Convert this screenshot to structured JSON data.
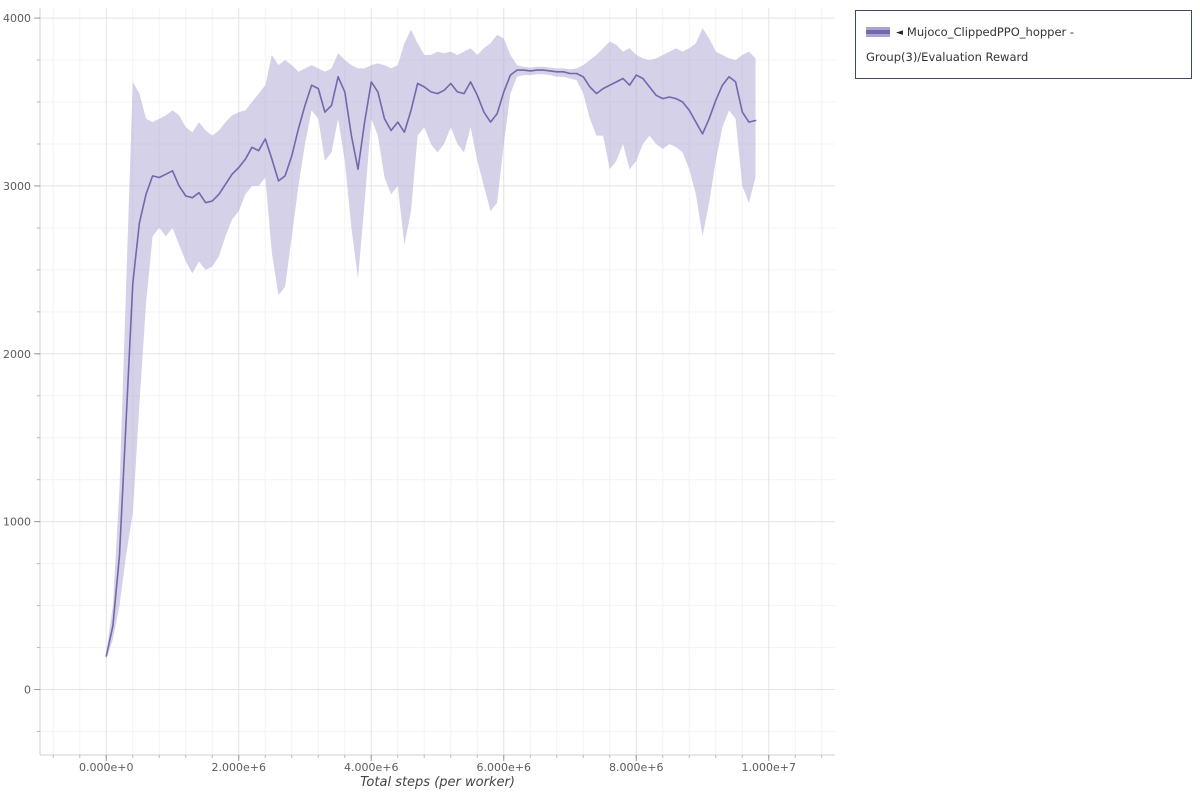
{
  "legend": {
    "marker": "◄",
    "label": "Mujoco_ClippedPPO_hopper - Group(3)/Evaluation Reward",
    "border_color": "#3b4a66"
  },
  "chart_data": {
    "type": "line",
    "title": "",
    "xlabel": "Total steps (per worker)",
    "ylabel": "",
    "xlim": [
      -1000000,
      11000000
    ],
    "ylim": [
      -390,
      4060
    ],
    "x_ticks": [
      {
        "value": 0,
        "label": "0.000e+0"
      },
      {
        "value": 2000000,
        "label": "2.000e+6"
      },
      {
        "value": 4000000,
        "label": "4.000e+6"
      },
      {
        "value": 6000000,
        "label": "6.000e+6"
      },
      {
        "value": 8000000,
        "label": "8.000e+6"
      },
      {
        "value": 10000000,
        "label": "1.000e+7"
      }
    ],
    "y_ticks": [
      {
        "value": 0,
        "label": "0"
      },
      {
        "value": 1000,
        "label": "1000"
      },
      {
        "value": 2000,
        "label": "2000"
      },
      {
        "value": 3000,
        "label": "3000"
      },
      {
        "value": 4000,
        "label": "4000"
      }
    ],
    "grid": {
      "x_minor_step": 400000,
      "x_major_step": 2000000,
      "y_minor_step": 250,
      "y_major_step": 1000,
      "minor_color": "#f3f3f3",
      "major_color": "#e4e4e4"
    },
    "series": [
      {
        "name": "Mujoco_ClippedPPO_hopper - Group(3)/Evaluation Reward",
        "line_color": "#7268ab",
        "band_color": "#aaa3d1",
        "band_opacity": 0.5,
        "x_start": 0,
        "x_step": 100000,
        "mean": [
          200,
          380,
          800,
          1600,
          2420,
          2780,
          2950,
          3060,
          3050,
          3070,
          3090,
          3000,
          2940,
          2930,
          2960,
          2900,
          2910,
          2950,
          3010,
          3070,
          3110,
          3160,
          3230,
          3210,
          3280,
          3160,
          3030,
          3060,
          3180,
          3340,
          3480,
          3600,
          3580,
          3440,
          3480,
          3650,
          3560,
          3300,
          3100,
          3380,
          3620,
          3560,
          3400,
          3330,
          3380,
          3320,
          3450,
          3610,
          3590,
          3560,
          3550,
          3570,
          3610,
          3560,
          3550,
          3620,
          3540,
          3440,
          3380,
          3430,
          3560,
          3660,
          3690,
          3690,
          3685,
          3690,
          3690,
          3685,
          3680,
          3680,
          3670,
          3670,
          3650,
          3590,
          3550,
          3580,
          3600,
          3620,
          3640,
          3600,
          3660,
          3640,
          3590,
          3540,
          3520,
          3530,
          3520,
          3500,
          3450,
          3380,
          3310,
          3400,
          3510,
          3600,
          3650,
          3620,
          3440,
          3380,
          3390
        ],
        "lower": [
          180,
          300,
          500,
          800,
          1050,
          1700,
          2300,
          2700,
          2750,
          2700,
          2750,
          2650,
          2550,
          2480,
          2550,
          2500,
          2520,
          2580,
          2700,
          2800,
          2850,
          2950,
          3000,
          3000,
          3050,
          2600,
          2350,
          2400,
          2700,
          3000,
          3250,
          3450,
          3400,
          3150,
          3200,
          3400,
          3150,
          2750,
          2450,
          2900,
          3400,
          3300,
          3050,
          2950,
          3000,
          2650,
          2850,
          3300,
          3350,
          3250,
          3200,
          3250,
          3350,
          3250,
          3200,
          3350,
          3150,
          3000,
          2850,
          2900,
          3250,
          3550,
          3650,
          3660,
          3660,
          3665,
          3665,
          3660,
          3650,
          3650,
          3640,
          3630,
          3550,
          3400,
          3300,
          3300,
          3100,
          3150,
          3250,
          3100,
          3150,
          3250,
          3300,
          3250,
          3220,
          3250,
          3230,
          3200,
          3100,
          2950,
          2700,
          2900,
          3150,
          3350,
          3450,
          3400,
          3000,
          2900,
          3050
        ],
        "upper": [
          220,
          500,
          1200,
          2400,
          3620,
          3550,
          3400,
          3380,
          3400,
          3420,
          3450,
          3420,
          3350,
          3320,
          3380,
          3330,
          3300,
          3330,
          3380,
          3420,
          3440,
          3450,
          3500,
          3550,
          3600,
          3780,
          3720,
          3750,
          3720,
          3680,
          3700,
          3720,
          3700,
          3680,
          3700,
          3790,
          3750,
          3720,
          3700,
          3700,
          3720,
          3730,
          3720,
          3700,
          3720,
          3850,
          3930,
          3850,
          3780,
          3780,
          3800,
          3790,
          3800,
          3780,
          3800,
          3820,
          3780,
          3820,
          3850,
          3900,
          3880,
          3780,
          3720,
          3710,
          3705,
          3710,
          3710,
          3705,
          3700,
          3700,
          3695,
          3700,
          3720,
          3750,
          3780,
          3820,
          3860,
          3840,
          3800,
          3820,
          3780,
          3760,
          3750,
          3760,
          3780,
          3800,
          3820,
          3800,
          3820,
          3850,
          3940,
          3880,
          3800,
          3780,
          3760,
          3750,
          3780,
          3800,
          3760
        ]
      }
    ]
  }
}
